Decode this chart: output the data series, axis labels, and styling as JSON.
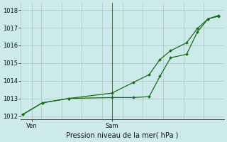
{
  "title": "Pression niveau de la mer( hPa )",
  "bg_color": "#cceaea",
  "grid_color": "#b0c8c8",
  "line_color": "#1a6b1a",
  "ylim": [
    1011.8,
    1018.4
  ],
  "yticks": [
    1012,
    1013,
    1014,
    1015,
    1016,
    1017,
    1018
  ],
  "xlim": [
    0,
    19
  ],
  "ven_x": 1.0,
  "sam_x": 8.5,
  "series1_x": [
    0.2,
    2.0,
    4.5,
    8.5,
    10.5,
    12.0,
    13.0,
    14.0,
    15.5,
    16.5,
    17.5,
    18.5
  ],
  "series1_y": [
    1012.1,
    1012.75,
    1013.0,
    1013.05,
    1013.05,
    1013.1,
    1014.25,
    1015.3,
    1015.5,
    1016.75,
    1017.5,
    1017.65
  ],
  "series2_x": [
    0.2,
    2.0,
    4.5,
    8.5,
    10.5,
    12.0,
    13.0,
    14.0,
    15.5,
    16.5,
    17.5,
    18.5
  ],
  "series2_y": [
    1012.1,
    1012.75,
    1013.0,
    1013.3,
    1013.9,
    1014.35,
    1015.2,
    1015.7,
    1016.15,
    1016.95,
    1017.5,
    1017.7
  ],
  "ylabel_fontsize": 6,
  "xlabel_fontsize": 7,
  "tick_fontsize": 6
}
